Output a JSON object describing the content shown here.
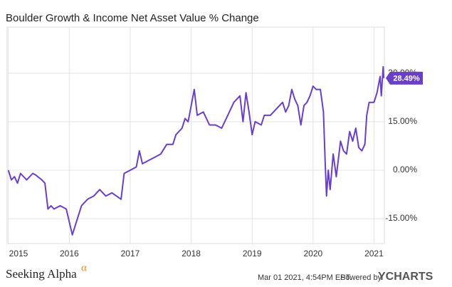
{
  "chart_data": {
    "type": "line",
    "title": "Boulder Growth & Income Net Asset Value % Change",
    "x": [
      2015.0,
      2015.05,
      2015.1,
      2015.15,
      2015.2,
      2015.3,
      2015.4,
      2015.45,
      2015.55,
      2015.6,
      2015.65,
      2015.7,
      2015.75,
      2015.85,
      2015.95,
      2016.05,
      2016.1,
      2016.2,
      2016.3,
      2016.4,
      2016.5,
      2016.6,
      2016.7,
      2016.85,
      2016.9,
      2017.0,
      2017.1,
      2017.15,
      2017.2,
      2017.3,
      2017.4,
      2017.5,
      2017.6,
      2017.7,
      2017.75,
      2017.85,
      2017.9,
      2017.95,
      2018.0,
      2018.05,
      2018.1,
      2018.2,
      2018.3,
      2018.4,
      2018.5,
      2018.6,
      2018.7,
      2018.8,
      2018.85,
      2018.9,
      2018.95,
      2019.0,
      2019.05,
      2019.15,
      2019.2,
      2019.3,
      2019.4,
      2019.5,
      2019.55,
      2019.6,
      2019.65,
      2019.7,
      2019.75,
      2019.8,
      2019.85,
      2019.9,
      2019.95,
      2020.0,
      2020.05,
      2020.12,
      2020.17,
      2020.2,
      2020.22,
      2020.25,
      2020.28,
      2020.33,
      2020.38,
      2020.45,
      2020.5,
      2020.55,
      2020.6,
      2020.65,
      2020.7,
      2020.75,
      2020.8,
      2020.85,
      2020.88,
      2020.92,
      2021.0,
      2021.05,
      2021.1,
      2021.12,
      2021.15,
      2021.16
    ],
    "series": [
      {
        "name": "Boulder Growth & Income Net Asset Value % Change",
        "color": "#6a3fc8",
        "values": [
          0,
          -3,
          -2,
          -4,
          -1,
          -3,
          -1,
          -1.5,
          -3,
          -4,
          -12,
          -11,
          -12,
          -11,
          -12,
          -20,
          -17,
          -11,
          -9,
          -8,
          -6,
          -8,
          -7,
          -9,
          -1,
          0,
          1,
          6,
          2,
          3,
          4,
          5,
          8,
          8,
          11,
          13,
          16,
          15,
          20,
          25,
          17,
          18,
          14,
          14,
          13,
          17,
          21,
          23,
          15,
          24,
          18,
          11,
          15,
          14,
          17,
          17,
          19,
          21,
          18,
          20,
          25,
          22,
          20,
          14,
          20,
          21,
          23,
          26,
          25,
          25,
          18,
          2,
          -8,
          0,
          -6,
          5,
          -2,
          9,
          6,
          5,
          12,
          9,
          13,
          7,
          6,
          8,
          17,
          21,
          21,
          24,
          29,
          23,
          32,
          28.49
        ]
      }
    ],
    "last_value_label": "28.49%",
    "xlim": [
      2014.98,
      2021.17
    ],
    "xticks": [
      2015,
      2016,
      2017,
      2018,
      2019,
      2020,
      2021
    ],
    "ylim": [
      -22.7,
      44.3
    ],
    "yticks": [
      {
        "value": 30,
        "label": "30.00%"
      },
      {
        "value": 15,
        "label": "15.00%"
      },
      {
        "value": 0,
        "label": "0.00%"
      },
      {
        "value": -15,
        "label": "-15.00%"
      }
    ],
    "grid": true,
    "source": "Seeking Alpha",
    "source_mark": "α",
    "timestamp": "Mar 01 2021, 4:54PM EST.",
    "powered_by": "Powered by",
    "brand": "YCHARTS"
  }
}
